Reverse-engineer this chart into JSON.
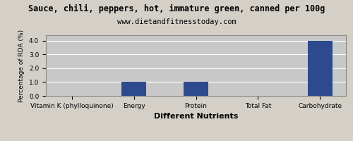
{
  "title": "Sauce, chili, peppers, hot, immature green, canned per 100g",
  "subtitle": "www.dietandfitnesstoday.com",
  "categories": [
    "Vitamin K (phylloquinone)",
    "Energy",
    "Protein",
    "Total Fat",
    "Carbohydrate"
  ],
  "values": [
    0.0,
    1.0,
    1.0,
    0.0,
    4.0
  ],
  "bar_color": "#2e4a8e",
  "xlabel": "Different Nutrients",
  "ylabel": "Percentage of RDA (%)",
  "ylim": [
    0,
    4.4
  ],
  "yticks": [
    0.0,
    1.0,
    2.0,
    3.0,
    4.0
  ],
  "ytick_labels": [
    "0.0",
    "1.0",
    "2.0",
    "3.0",
    "4.0"
  ],
  "background_color": "#d4d0c8",
  "plot_bg_color": "#c8c8c8",
  "title_fontsize": 8.5,
  "subtitle_fontsize": 7.5,
  "xlabel_fontsize": 8,
  "ylabel_fontsize": 6.5,
  "tick_fontsize": 6.5,
  "grid_color": "#ffffff",
  "border_color": "#888888",
  "bar_width": 0.4
}
